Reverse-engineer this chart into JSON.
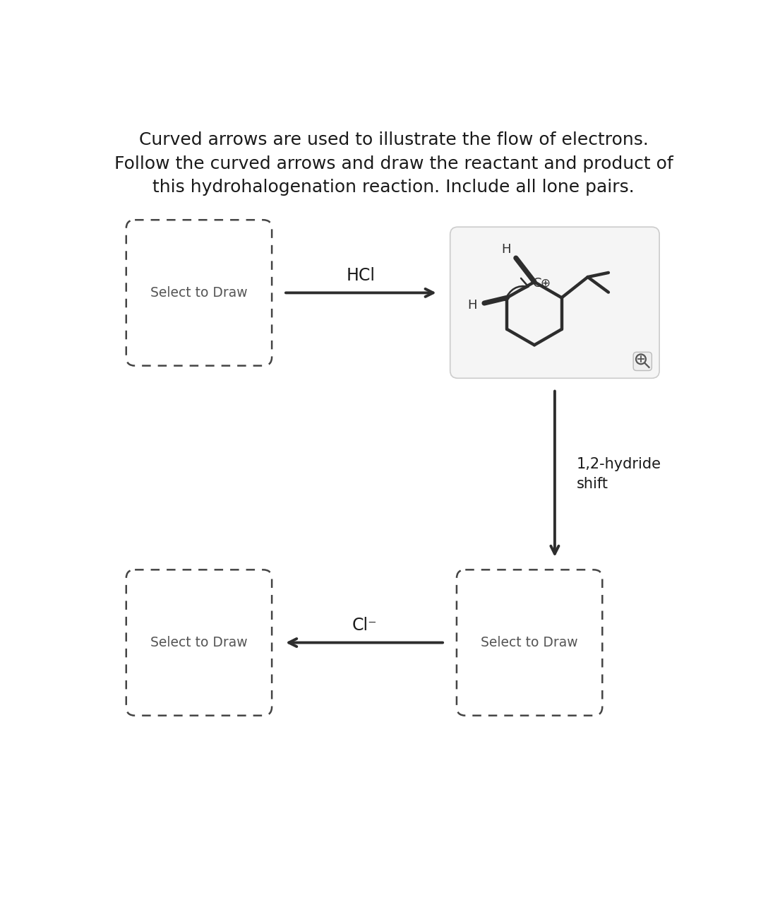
{
  "title_lines": [
    "Curved arrows are used to illustrate the flow of electrons.",
    "Follow the curved arrows and draw the reactant and product of",
    "this hydrohalogenation reaction. Include all lone pairs."
  ],
  "title_fontsize": 18,
  "bg_color": "#ffffff",
  "text_color": "#1a1a1a",
  "dashed_box_color": "#444444",
  "select_to_draw_text": "Select to Draw",
  "hcl_label": "HCl",
  "cl_label": "Cl⁻",
  "hydride_shift_label": "1,2-hydride\nshift",
  "arrow_color": "#2d2d2d",
  "mol_color": "#2d2d2d",
  "box_bg": "#ffffff",
  "mol_box_bg": "#f5f5f5",
  "mol_box_edge": "#cccccc"
}
